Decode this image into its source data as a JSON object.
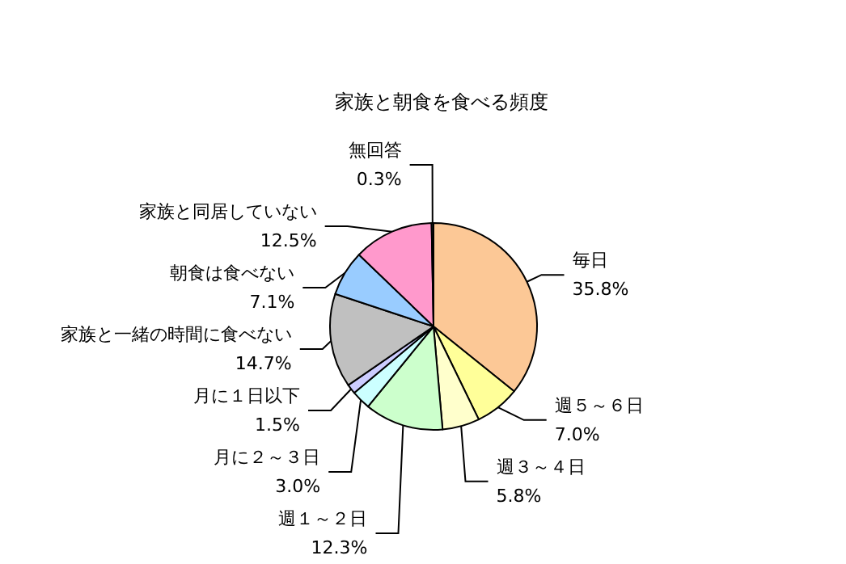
{
  "chart_data": {
    "type": "pie",
    "title": "家族と朝食を食べる頻度",
    "categories": [
      "毎日",
      "週５～６日",
      "週３～４日",
      "週１～２日",
      "月に２～３日",
      "月に１日以下",
      "家族と一緒の時間に食べない",
      "朝食は食べない",
      "家族と同居していない",
      "無回答"
    ],
    "values": [
      35.8,
      7.0,
      5.8,
      12.3,
      3.0,
      1.5,
      14.7,
      7.1,
      12.5,
      0.3
    ],
    "value_labels": [
      "35.8%",
      "7.0%",
      "5.8%",
      "12.3%",
      "3.0%",
      "1.5%",
      "14.7%",
      "7.1%",
      "12.5%",
      "0.3%"
    ],
    "colors": [
      "#fcc896",
      "#ffff99",
      "#ffffcc",
      "#ccffcc",
      "#ccffff",
      "#ccccff",
      "#c0c0c0",
      "#99ccff",
      "#ff99cc",
      "#333333"
    ],
    "legend": false
  }
}
